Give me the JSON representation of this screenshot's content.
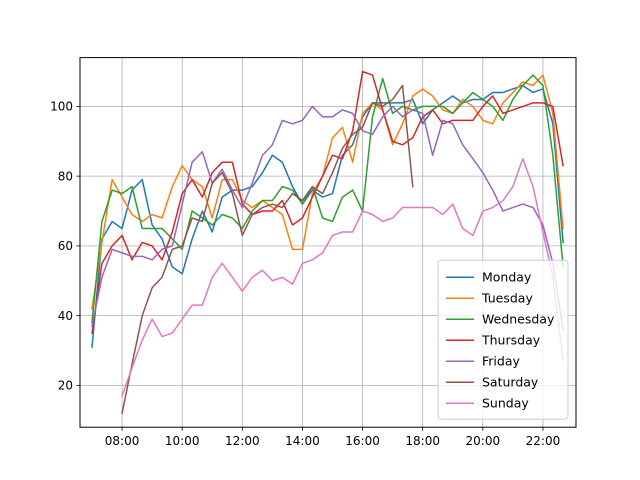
{
  "chart_data": {
    "type": "line",
    "title": "",
    "xlabel": "",
    "ylabel": "",
    "x_unit": "hours",
    "xlim": [
      6.6,
      23.1
    ],
    "ylim": [
      8,
      114
    ],
    "x_ticks": [
      {
        "value": 8,
        "label": "08:00"
      },
      {
        "value": 10,
        "label": "10:00"
      },
      {
        "value": 12,
        "label": "12:00"
      },
      {
        "value": 14,
        "label": "14:00"
      },
      {
        "value": 16,
        "label": "16:00"
      },
      {
        "value": 18,
        "label": "18:00"
      },
      {
        "value": 20,
        "label": "20:00"
      },
      {
        "value": 22,
        "label": "22:00"
      }
    ],
    "y_ticks": [
      {
        "value": 20,
        "label": "20"
      },
      {
        "value": 40,
        "label": "40"
      },
      {
        "value": 60,
        "label": "60"
      },
      {
        "value": 80,
        "label": "80"
      },
      {
        "value": 100,
        "label": "100"
      }
    ],
    "grid": true,
    "legend_position": "lower-right",
    "series": [
      {
        "name": "Monday",
        "color": "#1f77b4",
        "x": [
          7.0,
          7.33,
          7.67,
          8.0,
          8.33,
          8.67,
          9.0,
          9.33,
          9.67,
          10.0,
          10.33,
          10.67,
          11.0,
          11.33,
          11.67,
          12.0,
          12.33,
          12.67,
          13.0,
          13.33,
          13.67,
          14.0,
          14.33,
          14.67,
          15.0,
          15.33,
          15.67,
          16.0,
          16.33,
          16.67,
          17.0,
          17.33,
          17.67,
          18.0,
          18.33,
          18.67,
          19.0,
          19.33,
          19.67,
          20.0,
          20.33,
          20.67,
          21.0,
          21.33,
          21.67,
          22.0,
          22.33,
          22.67
        ],
        "y": [
          31,
          62,
          67,
          65,
          76,
          79,
          66,
          62,
          54,
          52,
          62,
          70,
          64,
          74,
          76,
          76,
          77,
          81,
          86,
          84,
          77,
          72,
          76,
          74,
          75,
          86,
          89,
          97,
          101,
          101,
          101,
          101,
          102,
          95,
          99,
          101,
          103,
          101,
          102,
          102,
          104,
          104,
          105,
          106,
          104,
          105,
          95,
          61
        ]
      },
      {
        "name": "Tuesday",
        "color": "#ff7f0e",
        "x": [
          7.0,
          7.33,
          7.67,
          8.0,
          8.33,
          8.67,
          9.0,
          9.33,
          9.67,
          10.0,
          10.33,
          10.67,
          11.0,
          11.33,
          11.67,
          12.0,
          12.33,
          12.67,
          13.0,
          13.33,
          13.67,
          14.0,
          14.33,
          14.67,
          15.0,
          15.33,
          15.67,
          16.0,
          16.33,
          16.67,
          17.0,
          17.33,
          17.67,
          18.0,
          18.33,
          18.67,
          19.0,
          19.33,
          19.67,
          20.0,
          20.33,
          20.67,
          21.0,
          21.33,
          21.67,
          22.0,
          22.33,
          22.67
        ],
        "y": [
          42,
          61,
          79,
          74,
          69,
          67,
          69,
          68,
          77,
          83,
          79,
          77,
          68,
          79,
          79,
          73,
          71,
          73,
          71,
          69,
          59,
          59,
          75,
          80,
          91,
          94,
          84,
          98,
          101,
          99,
          89,
          95,
          103,
          105,
          103,
          99,
          98,
          102,
          100,
          96,
          95,
          101,
          104,
          107,
          106,
          109,
          98,
          65
        ]
      },
      {
        "name": "Wednesday",
        "color": "#2ca02c",
        "x": [
          7.0,
          7.33,
          7.67,
          8.0,
          8.33,
          8.67,
          9.0,
          9.33,
          9.67,
          10.0,
          10.33,
          10.67,
          11.0,
          11.33,
          11.67,
          12.0,
          12.33,
          12.67,
          13.0,
          13.33,
          13.67,
          14.0,
          14.33,
          14.67,
          15.0,
          15.33,
          15.67,
          16.0,
          16.33,
          16.67,
          17.0,
          17.33,
          17.67,
          18.0,
          18.33,
          18.67,
          19.0,
          19.33,
          19.67,
          20.0,
          20.33,
          20.67,
          21.0,
          21.33,
          21.67,
          22.0,
          22.33,
          22.67
        ],
        "y": [
          38,
          67,
          76,
          75,
          77,
          65,
          65,
          65,
          62,
          59,
          70,
          68,
          66,
          69,
          68,
          65,
          70,
          73,
          73,
          77,
          76,
          72,
          77,
          68,
          67,
          74,
          76,
          70,
          97,
          108,
          98,
          100,
          99,
          100,
          100,
          100,
          98,
          101,
          104,
          102,
          100,
          96,
          102,
          106,
          109,
          106,
          86,
          54
        ]
      },
      {
        "name": "Thursday",
        "color": "#d62728",
        "x": [
          7.0,
          7.33,
          7.67,
          8.0,
          8.33,
          8.67,
          9.0,
          9.33,
          9.67,
          10.0,
          10.33,
          10.67,
          11.0,
          11.33,
          11.67,
          12.0,
          12.33,
          12.67,
          13.0,
          13.33,
          13.67,
          14.0,
          14.33,
          14.67,
          15.0,
          15.33,
          15.67,
          16.0,
          16.33,
          16.67,
          17.0,
          17.33,
          17.67,
          18.0,
          18.33,
          18.67,
          19.0,
          19.33,
          19.67,
          20.0,
          20.33,
          20.67,
          21.0,
          21.33,
          21.67,
          22.0,
          22.33,
          22.67
        ],
        "y": [
          35,
          55,
          60,
          63,
          56,
          61,
          60,
          56,
          64,
          75,
          79,
          74,
          81,
          84,
          84,
          72,
          69,
          70,
          70,
          73,
          66,
          68,
          74,
          80,
          86,
          85,
          93,
          110,
          109,
          99,
          90,
          89,
          91,
          97,
          99,
          95,
          96,
          96,
          96,
          100,
          103,
          98,
          99,
          100,
          101,
          101,
          100,
          83
        ]
      },
      {
        "name": "Friday",
        "color": "#9467bd",
        "x": [
          7.0,
          7.33,
          7.67,
          8.0,
          8.33,
          8.67,
          9.0,
          9.33,
          9.67,
          10.0,
          10.33,
          10.67,
          11.0,
          11.33,
          11.67,
          12.0,
          12.33,
          12.67,
          13.0,
          13.33,
          13.67,
          14.0,
          14.33,
          14.67,
          15.0,
          15.33,
          15.67,
          16.0,
          16.33,
          16.67,
          17.0,
          17.33,
          17.67,
          18.0,
          18.33,
          18.67,
          19.0,
          19.33,
          19.67,
          20.0,
          20.33,
          20.67,
          21.0,
          21.33,
          21.67,
          22.0,
          22.33,
          22.67
        ],
        "y": [
          37,
          51,
          59,
          58,
          57,
          57,
          56,
          59,
          60,
          72,
          84,
          87,
          78,
          82,
          76,
          71,
          78,
          86,
          89,
          96,
          95,
          96,
          100,
          97,
          97,
          99,
          98,
          93,
          92,
          97,
          100,
          97,
          99,
          98,
          86,
          96,
          95,
          89,
          85,
          81,
          76,
          70,
          71,
          72,
          71,
          66,
          55,
          36
        ]
      },
      {
        "name": "Saturday",
        "color": "#8c564b",
        "x": [
          8.0,
          8.33,
          8.67,
          9.0,
          9.33,
          9.67,
          10.0,
          10.33,
          10.67,
          11.0,
          11.33,
          11.67,
          12.0,
          12.33,
          12.67,
          13.0,
          13.33,
          13.67,
          14.0,
          14.33,
          14.67,
          15.0,
          15.33,
          15.67,
          16.0,
          16.33,
          16.67,
          17.0,
          17.33,
          17.67
        ],
        "y": [
          12,
          26,
          40,
          48,
          51,
          59,
          60,
          68,
          67,
          78,
          81,
          75,
          63,
          69,
          71,
          72,
          71,
          75,
          73,
          77,
          75,
          81,
          88,
          92,
          94,
          101,
          100,
          102,
          106,
          77
        ]
      },
      {
        "name": "Sunday",
        "color": "#e377c2",
        "x": [
          8.0,
          8.33,
          8.67,
          9.0,
          9.33,
          9.67,
          10.0,
          10.33,
          10.67,
          11.0,
          11.33,
          11.67,
          12.0,
          12.33,
          12.67,
          13.0,
          13.33,
          13.67,
          14.0,
          14.33,
          14.67,
          15.0,
          15.33,
          15.67,
          16.0,
          16.33,
          16.67,
          17.0,
          17.33,
          17.67,
          18.0,
          18.33,
          18.67,
          19.0,
          19.33,
          19.67,
          20.0,
          20.33,
          20.67,
          21.0,
          21.33,
          21.67,
          22.0,
          22.33,
          22.67
        ],
        "y": [
          17,
          25,
          33,
          39,
          34,
          35,
          39,
          43,
          43,
          51,
          55,
          51,
          47,
          51,
          53,
          50,
          51,
          49,
          55,
          56,
          58,
          63,
          64,
          64,
          70,
          69,
          67,
          68,
          71,
          71,
          71,
          71,
          69,
          72,
          65,
          63,
          70,
          71,
          73,
          77,
          85,
          77,
          64,
          51,
          27
        ]
      }
    ]
  }
}
